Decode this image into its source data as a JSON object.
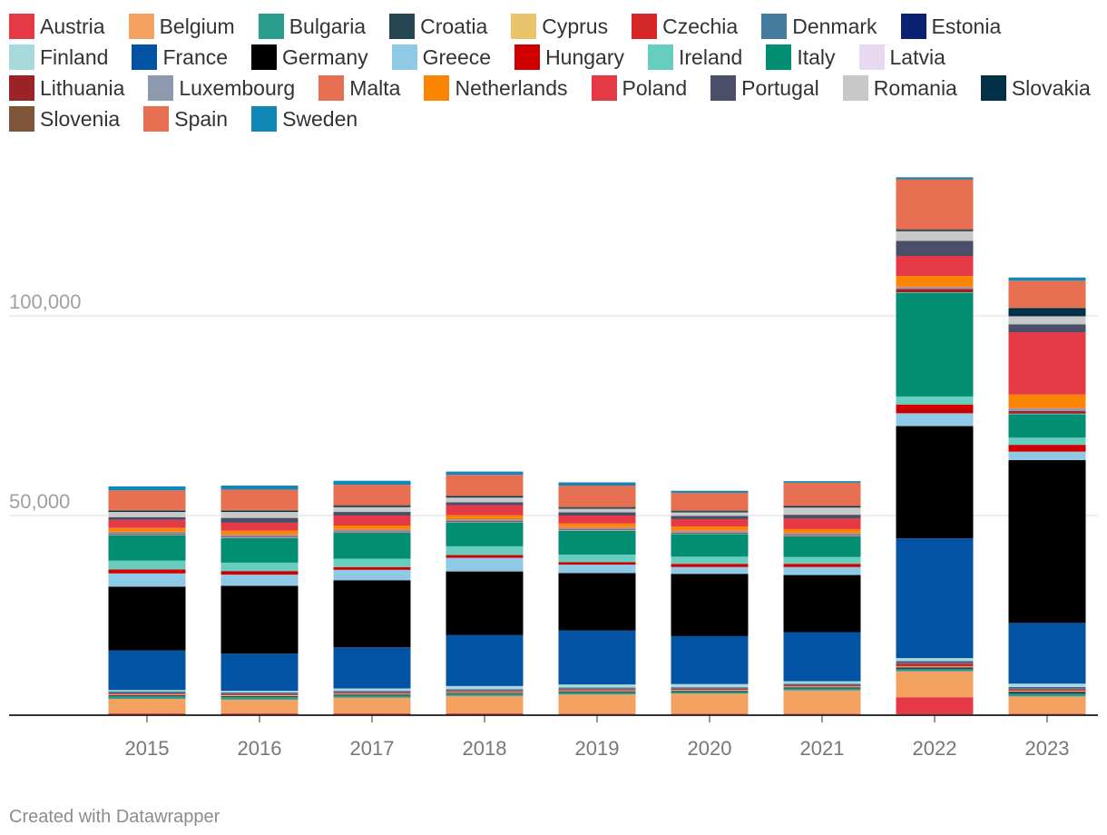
{
  "chart_data": {
    "type": "bar",
    "stacked": true,
    "categories": [
      "2015",
      "2016",
      "2017",
      "2018",
      "2019",
      "2020",
      "2021",
      "2022",
      "2023"
    ],
    "ylim": [
      0,
      140000
    ],
    "yticks": [
      {
        "value": 50000,
        "label": "50,000"
      },
      {
        "value": 100000,
        "label": "100,000"
      }
    ],
    "grid": true,
    "legend_position": "top",
    "series": [
      {
        "name": "Austria",
        "color": "#e63946",
        "values": [
          500,
          500,
          500,
          500,
          400,
          400,
          400,
          4500,
          400
        ]
      },
      {
        "name": "Belgium",
        "color": "#f4a261",
        "values": [
          3600,
          3400,
          3900,
          4300,
          4800,
          5000,
          5800,
          6500,
          4300
        ]
      },
      {
        "name": "Bulgaria",
        "color": "#2a9d8f",
        "values": [
          600,
          600,
          500,
          500,
          500,
          400,
          500,
          500,
          600
        ]
      },
      {
        "name": "Croatia",
        "color": "#264653",
        "values": [
          300,
          300,
          300,
          300,
          300,
          300,
          300,
          500,
          600
        ]
      },
      {
        "name": "Cyprus",
        "color": "#e9c46a",
        "values": [
          200,
          200,
          200,
          200,
          200,
          200,
          200,
          200,
          200
        ]
      },
      {
        "name": "Czechia",
        "color": "#d62828",
        "values": [
          300,
          300,
          300,
          300,
          300,
          300,
          300,
          800,
          400
        ]
      },
      {
        "name": "Denmark",
        "color": "#457b9d",
        "values": [
          300,
          300,
          300,
          300,
          300,
          300,
          300,
          300,
          300
        ]
      },
      {
        "name": "Estonia",
        "color": "#0b2171",
        "values": [
          100,
          100,
          100,
          100,
          100,
          100,
          100,
          200,
          200
        ]
      },
      {
        "name": "Finland",
        "color": "#a8dadc",
        "values": [
          400,
          400,
          600,
          800,
          800,
          800,
          600,
          800,
          900
        ]
      },
      {
        "name": "France",
        "color": "#0353a4",
        "values": [
          9900,
          9300,
          10300,
          12800,
          13500,
          12000,
          12300,
          30000,
          15200
        ]
      },
      {
        "name": "Germany",
        "color": "#000000",
        "values": [
          16000,
          17000,
          16800,
          15900,
          14400,
          15600,
          14300,
          28100,
          40800
        ]
      },
      {
        "name": "Greece",
        "color": "#8ecae6",
        "values": [
          3300,
          2800,
          2600,
          3400,
          2100,
          1700,
          2000,
          3200,
          2100
        ]
      },
      {
        "name": "Hungary",
        "color": "#d00000",
        "values": [
          1000,
          900,
          700,
          700,
          600,
          800,
          800,
          2200,
          1700
        ]
      },
      {
        "name": "Ireland",
        "color": "#66cdbf",
        "values": [
          2200,
          2100,
          2100,
          2200,
          1900,
          1800,
          1700,
          2000,
          1800
        ]
      },
      {
        "name": "Italy",
        "color": "#028e72",
        "values": [
          6400,
          6200,
          6500,
          6000,
          6000,
          5700,
          5200,
          26000,
          5900
        ]
      },
      {
        "name": "Latvia",
        "color": "#e8d8f0",
        "values": [
          100,
          100,
          100,
          100,
          100,
          100,
          100,
          100,
          100
        ]
      },
      {
        "name": "Lithuania",
        "color": "#9b2226",
        "values": [
          200,
          200,
          200,
          200,
          200,
          200,
          200,
          800,
          700
        ]
      },
      {
        "name": "Luxembourg",
        "color": "#8d99ae",
        "values": [
          400,
          400,
          400,
          400,
          400,
          400,
          400,
          400,
          600
        ]
      },
      {
        "name": "Malta",
        "color": "#e76f51",
        "values": [
          200,
          200,
          200,
          200,
          200,
          200,
          200,
          200,
          200
        ]
      },
      {
        "name": "Netherlands",
        "color": "#fb8500",
        "values": [
          900,
          900,
          900,
          900,
          900,
          900,
          900,
          2700,
          3300
        ]
      },
      {
        "name": "Poland",
        "color": "#e63946",
        "values": [
          2000,
          2000,
          2500,
          2500,
          2000,
          1900,
          2700,
          5000,
          15600
        ]
      },
      {
        "name": "Portugal",
        "color": "#4a4e69",
        "values": [
          700,
          1200,
          900,
          700,
          800,
          800,
          900,
          3800,
          2000
        ]
      },
      {
        "name": "Romania",
        "color": "#c8c8c8",
        "values": [
          1300,
          1500,
          1200,
          1200,
          900,
          900,
          1800,
          2400,
          2000
        ]
      },
      {
        "name": "Slovakia",
        "color": "#023047",
        "values": [
          300,
          300,
          300,
          300,
          300,
          300,
          300,
          300,
          2000
        ]
      },
      {
        "name": "Slovenia",
        "color": "#7f5539",
        "values": [
          200,
          200,
          200,
          200,
          200,
          200,
          200,
          200,
          200
        ]
      },
      {
        "name": "Spain",
        "color": "#e76f51",
        "values": [
          4900,
          5100,
          5100,
          5200,
          5300,
          4400,
          5700,
          12500,
          6700
        ]
      },
      {
        "name": "Sweden",
        "color": "#1187b7",
        "values": [
          1000,
          1000,
          1000,
          800,
          800,
          500,
          400,
          500,
          800
        ]
      }
    ]
  },
  "footer": {
    "credit": "Created with Datawrapper"
  }
}
